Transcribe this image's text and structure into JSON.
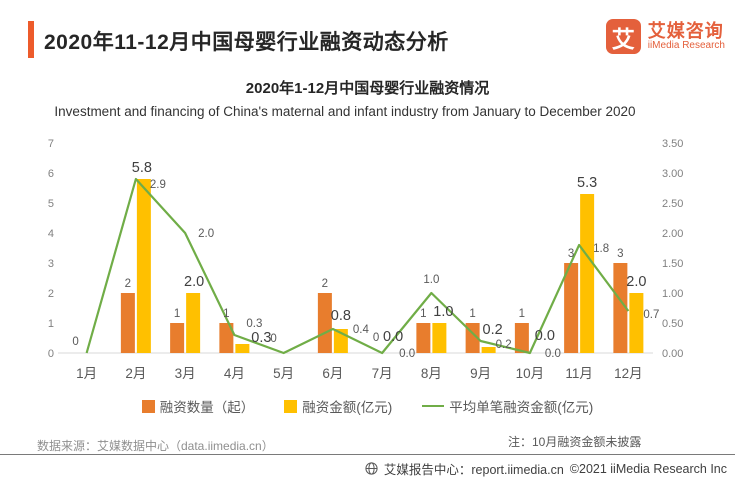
{
  "header": {
    "title": "2020年11-12月中国母婴行业融资动态分析",
    "logo": {
      "symbol": "艾",
      "name_cn": "艾媒咨询",
      "name_en": "iiMedia Research"
    }
  },
  "chart": {
    "title": "2020年1-12月中国母婴行业融资情况",
    "subtitle": "Investment and financing of China's maternal and infant industry from January to December 2020"
  },
  "chart_data": {
    "type": "combo-bar-line",
    "categories": [
      "1月",
      "2月",
      "3月",
      "4月",
      "5月",
      "6月",
      "7月",
      "8月",
      "9月",
      "10月",
      "11月",
      "12月"
    ],
    "series": [
      {
        "name": "融资数量（起）",
        "type": "bar",
        "axis": "left",
        "color": "#E87D2D",
        "values": [
          0,
          2,
          1,
          1,
          0,
          2,
          0,
          1,
          1,
          1,
          3,
          3
        ],
        "labels": [
          "",
          "2",
          "1",
          "1",
          "",
          "2",
          "0",
          "1",
          "1",
          "1",
          "3",
          "3"
        ]
      },
      {
        "name": "融资金额(亿元)",
        "type": "bar",
        "axis": "left",
        "color": "#FFC000",
        "values": [
          0,
          5.8,
          2.0,
          0.3,
          0,
          0.8,
          0,
          1.0,
          0.2,
          0,
          5.3,
          2.0
        ],
        "labels": [
          "",
          "5.8",
          "2.0",
          "0.3",
          "",
          "0.8",
          "0.0",
          "1.0",
          "0.2",
          "0.0",
          "5.3",
          "2.0"
        ]
      },
      {
        "name": "平均单笔融资金额(亿元)",
        "type": "line",
        "axis": "right",
        "color": "#70AD47",
        "values": [
          0,
          2.9,
          2.0,
          0.3,
          0,
          0.4,
          0,
          1.0,
          0.2,
          0,
          1.8,
          0.7
        ],
        "labels": [
          "0",
          "2.9",
          "2.0",
          "0.3",
          "0",
          "0.4",
          "0.0",
          "1.0",
          "0.2",
          "0.0",
          "1.8",
          "0.7"
        ]
      }
    ],
    "left_axis": {
      "min": 0,
      "max": 7,
      "step": 1,
      "ticks": [
        "0",
        "1",
        "2",
        "3",
        "4",
        "5",
        "6",
        "7"
      ]
    },
    "right_axis": {
      "min": 0,
      "max": 3.5,
      "step": 0.5,
      "ticks": [
        "0.00",
        "0.50",
        "1.00",
        "1.50",
        "2.00",
        "2.50",
        "3.00",
        "3.50"
      ]
    },
    "grid": false,
    "legend_position": "bottom"
  },
  "footnotes": {
    "source": "数据来源：艾媒数据中心（data.iimedia.cn）",
    "note": "注：10月融资金额未披露"
  },
  "footer": {
    "report_center": "艾媒报告中心：report.iimedia.cn",
    "copyright": "©2021  iiMedia Research Inc"
  },
  "colors": {
    "brand": "#ED5B2B",
    "bar_count": "#E87D2D",
    "bar_amount": "#FFC000",
    "line_avg": "#70AD47",
    "axis_line": "#D9D9D9",
    "tick_text": "#808080",
    "label_text": "#595959",
    "big_label_text": "#404040"
  }
}
